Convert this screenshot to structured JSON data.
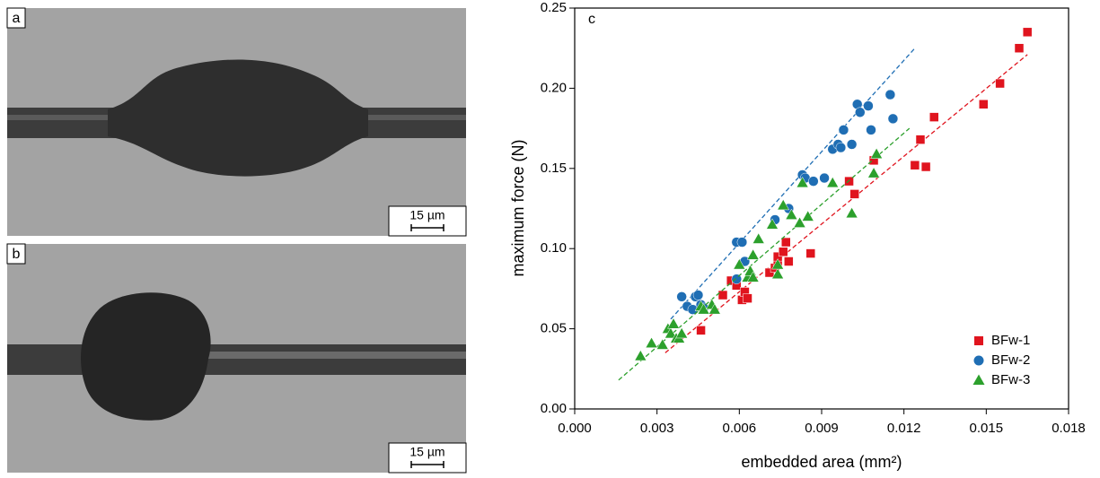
{
  "panels": [
    {
      "label": "a",
      "scale_bar": "15 µm"
    },
    {
      "label": "b",
      "scale_bar": "15 µm"
    }
  ],
  "chart_data": {
    "type": "scatter",
    "panel_label": "c",
    "xlabel": "embedded area (mm²)",
    "ylabel": "maximum force (N)",
    "xlim": [
      0,
      0.018
    ],
    "ylim": [
      0,
      0.25
    ],
    "xticks": [
      {
        "value": 0,
        "label": "0.000"
      },
      {
        "value": 0.003,
        "label": "0.003"
      },
      {
        "value": 0.006,
        "label": "0.006"
      },
      {
        "value": 0.009,
        "label": "0.009"
      },
      {
        "value": 0.012,
        "label": "0.012"
      },
      {
        "value": 0.015,
        "label": "0.015"
      },
      {
        "value": 0.018,
        "label": "0.018"
      }
    ],
    "yticks": [
      {
        "value": 0,
        "label": "0.00"
      },
      {
        "value": 0.05,
        "label": "0.05"
      },
      {
        "value": 0.1,
        "label": "0.10"
      },
      {
        "value": 0.15,
        "label": "0.15"
      },
      {
        "value": 0.2,
        "label": "0.20"
      },
      {
        "value": 0.25,
        "label": "0.25"
      }
    ],
    "legend": "lower right",
    "series": [
      {
        "name": "BFw-1",
        "color": "#e0141e",
        "marker": "square",
        "x": [
          0.0046,
          0.0054,
          0.0057,
          0.0059,
          0.0061,
          0.0062,
          0.0063,
          0.0071,
          0.0073,
          0.0074,
          0.0074,
          0.0076,
          0.0077,
          0.0078,
          0.0086,
          0.01,
          0.0102,
          0.0109,
          0.0124,
          0.0126,
          0.0128,
          0.0131,
          0.0149,
          0.0155,
          0.0162,
          0.0165
        ],
        "y": [
          0.049,
          0.071,
          0.08,
          0.077,
          0.068,
          0.073,
          0.069,
          0.085,
          0.088,
          0.092,
          0.095,
          0.098,
          0.104,
          0.092,
          0.097,
          0.142,
          0.134,
          0.155,
          0.152,
          0.168,
          0.151,
          0.182,
          0.19,
          0.203,
          0.225,
          0.235
        ],
        "fit_x": [
          0.0033,
          0.0165
        ],
        "fit_y": [
          0.035,
          0.221
        ]
      },
      {
        "name": "BFw-2",
        "color": "#1f6eb4",
        "marker": "circle",
        "x": [
          0.0039,
          0.0041,
          0.0043,
          0.0044,
          0.0045,
          0.0046,
          0.0047,
          0.0059,
          0.0059,
          0.0061,
          0.0062,
          0.0073,
          0.0078,
          0.0083,
          0.0084,
          0.0087,
          0.0091,
          0.0094,
          0.0096,
          0.0097,
          0.0098,
          0.0101,
          0.0103,
          0.0104,
          0.0107,
          0.0108,
          0.0115,
          0.0116
        ],
        "y": [
          0.07,
          0.064,
          0.062,
          0.07,
          0.071,
          0.065,
          0.063,
          0.081,
          0.104,
          0.104,
          0.092,
          0.118,
          0.125,
          0.146,
          0.144,
          0.142,
          0.144,
          0.162,
          0.165,
          0.163,
          0.174,
          0.165,
          0.19,
          0.185,
          0.189,
          0.174,
          0.196,
          0.181
        ],
        "fit_x": [
          0.0035,
          0.0124
        ],
        "fit_y": [
          0.056,
          0.225
        ]
      },
      {
        "name": "BFw-3",
        "color": "#2ca02c",
        "marker": "triangle",
        "x": [
          0.0024,
          0.0028,
          0.0032,
          0.0034,
          0.0035,
          0.0036,
          0.0037,
          0.0038,
          0.0039,
          0.0046,
          0.0047,
          0.005,
          0.0051,
          0.006,
          0.0063,
          0.0064,
          0.0065,
          0.0065,
          0.0067,
          0.0072,
          0.0074,
          0.0074,
          0.0076,
          0.0079,
          0.0082,
          0.0083,
          0.0085,
          0.0094,
          0.0101,
          0.0109,
          0.011
        ],
        "y": [
          0.033,
          0.041,
          0.04,
          0.05,
          0.047,
          0.053,
          0.044,
          0.044,
          0.047,
          0.064,
          0.062,
          0.065,
          0.062,
          0.09,
          0.082,
          0.086,
          0.096,
          0.082,
          0.106,
          0.115,
          0.084,
          0.09,
          0.127,
          0.121,
          0.116,
          0.141,
          0.12,
          0.141,
          0.122,
          0.147,
          0.159
        ],
        "fit_x": [
          0.0016,
          0.0122
        ],
        "fit_y": [
          0.018,
          0.175
        ]
      }
    ]
  }
}
